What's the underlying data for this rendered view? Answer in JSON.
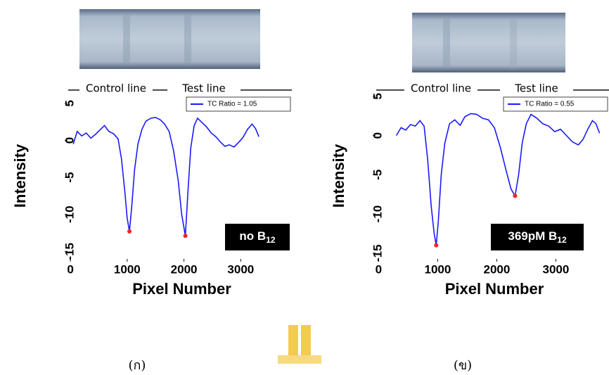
{
  "charts": [
    {
      "type": "line",
      "header_labels": [
        "Control line",
        "Test line"
      ],
      "ylabel": "Intensity",
      "xlabel": "Pixel Number",
      "xlim": [
        -100,
        3900
      ],
      "xticks": [
        0,
        1000,
        2000,
        3000
      ],
      "ylim": [
        -16.4,
        6.8
      ],
      "yticks": [
        5,
        0,
        -5,
        -10,
        -15
      ],
      "series": [
        {
          "name": "TC Ratio = 1.05",
          "color": "#1a1aff",
          "x": [
            50,
            120,
            200,
            280,
            360,
            440,
            520,
            600,
            680,
            760,
            840,
            900,
            960,
            1000,
            1040,
            1080,
            1130,
            1190,
            1260,
            1330,
            1420,
            1500,
            1580,
            1660,
            1740,
            1820,
            1900,
            1960,
            2025,
            2070,
            2120,
            2180,
            2240,
            2320,
            2400,
            2480,
            2560,
            2640,
            2720,
            2800,
            2880,
            2960,
            3040,
            3120,
            3200,
            3260,
            3320
          ],
          "values": [
            -0.5,
            1.2,
            0.6,
            1.0,
            0.3,
            0.8,
            1.4,
            2.0,
            1.2,
            0.9,
            0.2,
            -2.5,
            -7,
            -10.5,
            -12.3,
            -9,
            -4,
            -0.5,
            1.5,
            2.6,
            3.0,
            3.1,
            2.8,
            2.2,
            1.2,
            -1.5,
            -5.5,
            -10,
            -12.9,
            -7,
            -1,
            2.0,
            3.0,
            2.4,
            1.8,
            1.0,
            0.5,
            -0.2,
            -0.8,
            -0.6,
            -0.9,
            -0.3,
            0.4,
            1.5,
            2.2,
            1.6,
            0.5
          ]
        }
      ],
      "markers": {
        "color": "#ff2020",
        "x": [
          1040,
          2025
        ],
        "values": [
          -12.3,
          -12.9
        ]
      },
      "annotation": {
        "text": "no B",
        "sub": "12"
      },
      "caption": "(ก)"
    },
    {
      "type": "line",
      "header_labels": [
        "Control line",
        "Test line"
      ],
      "ylabel": "Intensity",
      "xlabel": "Pixel Number",
      "xlim": [
        -100,
        3900
      ],
      "xticks": [
        0,
        1000,
        2000,
        3000
      ],
      "ylim": [
        -16.1,
        5.8
      ],
      "yticks": [
        5,
        0,
        -5,
        -10,
        -15
      ],
      "series": [
        {
          "name": "TC Ratio = 0.55",
          "color": "#1a1aff",
          "x": [
            300,
            380,
            460,
            540,
            620,
            700,
            770,
            830,
            890,
            940,
            975,
            1010,
            1060,
            1120,
            1200,
            1290,
            1380,
            1460,
            1560,
            1660,
            1760,
            1860,
            1960,
            2060,
            2160,
            2240,
            2310,
            2370,
            2430,
            2500,
            2580,
            2680,
            2780,
            2880,
            2980,
            3080,
            3180,
            3280,
            3380,
            3460,
            3540,
            3620,
            3680,
            3740
          ],
          "values": [
            0,
            1.0,
            0.7,
            1.4,
            1.2,
            1.9,
            1.2,
            -3,
            -9,
            -12.5,
            -14,
            -11,
            -5,
            -1,
            1.5,
            2.0,
            1.3,
            2.4,
            2.8,
            2.7,
            2.2,
            2.0,
            1.0,
            -1.5,
            -4.5,
            -6.8,
            -7.7,
            -5,
            -1,
            1.5,
            2.7,
            2.2,
            1.5,
            1.2,
            0.5,
            0.8,
            0.0,
            -0.8,
            -1.2,
            -0.5,
            0.8,
            1.9,
            1.5,
            0.3
          ]
        }
      ],
      "markers": {
        "color": "#ff2020",
        "x": [
          975,
          2310
        ],
        "values": [
          -14,
          -7.7
        ]
      },
      "annotation": {
        "text": "369pM B",
        "sub": "12"
      },
      "caption": "(ข)"
    }
  ]
}
